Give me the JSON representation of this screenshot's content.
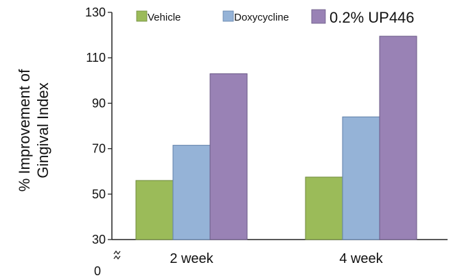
{
  "chart_data": {
    "type": "bar",
    "categories": [
      "2 week",
      "4 week"
    ],
    "series": [
      {
        "name": "Vehicle",
        "values": [
          56,
          57.5
        ],
        "color": "#9bbb59"
      },
      {
        "name": "Doxycycline",
        "values": [
          71.5,
          84
        ],
        "color": "#95b3d7"
      },
      {
        "name": "0.2% UP446",
        "values": [
          103,
          119.5
        ],
        "color": "#9982b5"
      }
    ],
    "ylabel_lines": [
      "% Improvement of",
      "Gingival Index"
    ],
    "xlabel": "",
    "ylim": [
      30,
      130
    ],
    "yticks": [
      "30",
      "50",
      "70",
      "90",
      "110",
      "130"
    ],
    "y_break_zero": "0",
    "legend_position": "top",
    "grid": false
  }
}
